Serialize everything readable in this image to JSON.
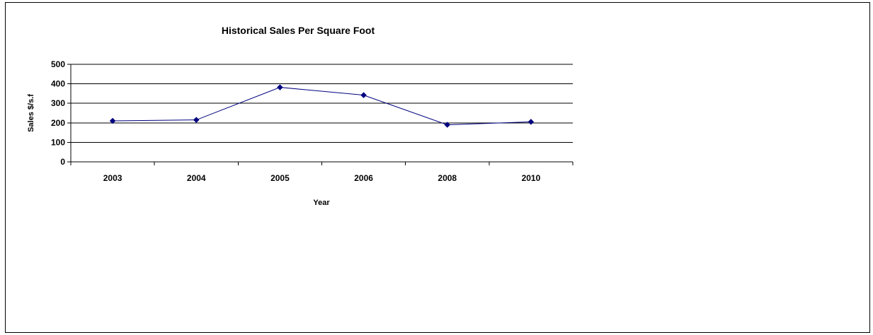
{
  "chart_data": {
    "type": "line",
    "title": "Historical Sales Per Square Foot",
    "xlabel": "Year",
    "ylabel": "Sales $/s.f",
    "categories": [
      "2003",
      "2004",
      "2005",
      "2006",
      "2008",
      "2010"
    ],
    "series": [
      {
        "values": [
          210,
          215,
          382,
          342,
          190,
          205
        ],
        "color": "#000080",
        "marker": "diamond"
      }
    ],
    "ylim": [
      0,
      500
    ],
    "yticks": [
      0,
      100,
      200,
      300,
      400,
      500
    ],
    "grid": true,
    "legend": "none"
  }
}
